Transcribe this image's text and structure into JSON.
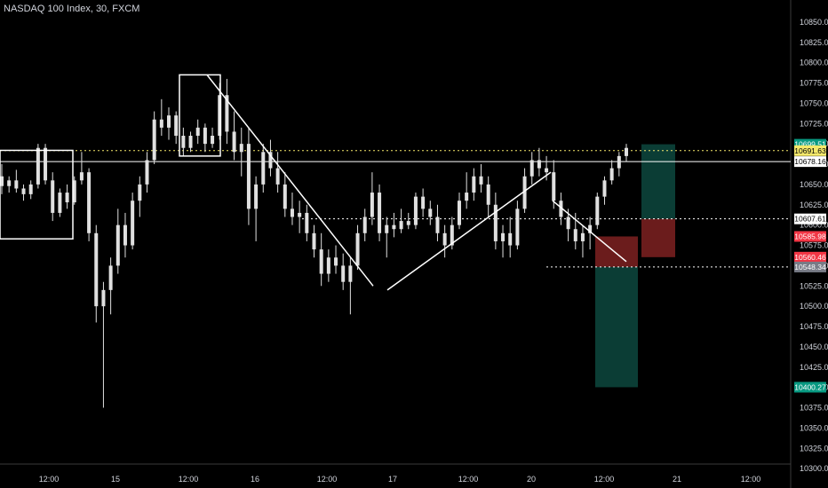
{
  "header": {
    "title": "NASDAQ 100 Index, 30, FXCM"
  },
  "chart_data": {
    "type": "candlestick",
    "title": "NASDAQ 100 Index, 30, FXCM",
    "ylim": [
      10295,
      10875
    ],
    "y_ticks": [
      10850,
      10825,
      10800,
      10775,
      10750,
      10725,
      10700,
      10675,
      10650,
      10625,
      10600,
      10575,
      10550,
      10525,
      10500,
      10475,
      10450,
      10425,
      10400,
      10375,
      10350,
      10325,
      10300
    ],
    "y_tick_labels": [
      "10850.00",
      "10825.00",
      "10800.00",
      "10775.00",
      "10750.00",
      "10725.00",
      "10700.00",
      "10675.00",
      "10650.00",
      "10625.00",
      "10600.00",
      "10575.00",
      "10550.00",
      "10525.00",
      "10500.00",
      "10475.00",
      "10450.00",
      "10425.00",
      "10400.00",
      "10375.00",
      "10350.00",
      "10325.00",
      "10300.00"
    ],
    "x_labels": [
      "12:00",
      "15",
      "12:00",
      "16",
      "12:00",
      "17",
      "12:00",
      "20",
      "12:00",
      "21",
      "12:00"
    ],
    "price_tags": [
      {
        "label": "10699.51",
        "value": 10699.51,
        "color": "#089981"
      },
      {
        "label": "10691.63",
        "value": 10691.63,
        "color": "#f5e96b"
      },
      {
        "label": "10678.16",
        "value": 10678.16,
        "color": "#ffffff"
      },
      {
        "label": "10607.61",
        "value": 10607.61,
        "color": "#ffffff"
      },
      {
        "label": "10585.98",
        "value": 10585.98,
        "color": "#f23645"
      },
      {
        "label": "10560.46",
        "value": 10560.46,
        "color": "#f23645"
      },
      {
        "label": "10548.34",
        "value": 10548.34,
        "color": "#787b86"
      },
      {
        "label": "10400.27",
        "value": 10400.27,
        "color": "#089981"
      }
    ],
    "candles_ohlc": [
      [
        10660,
        10675,
        10638,
        10648
      ],
      [
        10648,
        10660,
        10640,
        10655
      ],
      [
        10655,
        10668,
        10640,
        10645
      ],
      [
        10645,
        10650,
        10630,
        10638
      ],
      [
        10638,
        10655,
        10632,
        10650
      ],
      [
        10650,
        10700,
        10645,
        10695
      ],
      [
        10695,
        10700,
        10650,
        10655
      ],
      [
        10655,
        10665,
        10605,
        10615
      ],
      [
        10615,
        10645,
        10610,
        10640
      ],
      [
        10640,
        10650,
        10620,
        10628
      ],
      [
        10628,
        10660,
        10625,
        10655
      ],
      [
        10655,
        10690,
        10650,
        10665
      ],
      [
        10665,
        10670,
        10580,
        10590
      ],
      [
        10590,
        10600,
        10480,
        10500
      ],
      [
        10500,
        10530,
        10375,
        10520
      ],
      [
        10520,
        10560,
        10490,
        10550
      ],
      [
        10550,
        10620,
        10540,
        10600
      ],
      [
        10600,
        10615,
        10560,
        10575
      ],
      [
        10575,
        10640,
        10570,
        10630
      ],
      [
        10630,
        10660,
        10610,
        10650
      ],
      [
        10650,
        10690,
        10640,
        10680
      ],
      [
        10680,
        10740,
        10675,
        10730
      ],
      [
        10730,
        10755,
        10710,
        10720
      ],
      [
        10720,
        10745,
        10705,
        10735
      ],
      [
        10735,
        10740,
        10700,
        10710
      ],
      [
        10710,
        10720,
        10685,
        10695
      ],
      [
        10695,
        10715,
        10690,
        10710
      ],
      [
        10710,
        10730,
        10700,
        10720
      ],
      [
        10720,
        10725,
        10690,
        10700
      ],
      [
        10700,
        10720,
        10695,
        10710
      ],
      [
        10710,
        10775,
        10705,
        10760
      ],
      [
        10760,
        10780,
        10700,
        10715
      ],
      [
        10715,
        10740,
        10680,
        10690
      ],
      [
        10690,
        10720,
        10660,
        10700
      ],
      [
        10700,
        10720,
        10600,
        10620
      ],
      [
        10620,
        10660,
        10580,
        10650
      ],
      [
        10650,
        10700,
        10640,
        10690
      ],
      [
        10690,
        10705,
        10660,
        10670
      ],
      [
        10670,
        10690,
        10640,
        10650
      ],
      [
        10650,
        10665,
        10610,
        10620
      ],
      [
        10620,
        10640,
        10600,
        10610
      ],
      [
        10610,
        10630,
        10590,
        10615
      ],
      [
        10615,
        10625,
        10580,
        10590
      ],
      [
        10590,
        10600,
        10560,
        10570
      ],
      [
        10570,
        10590,
        10525,
        10540
      ],
      [
        10540,
        10570,
        10530,
        10560
      ],
      [
        10560,
        10575,
        10540,
        10550
      ],
      [
        10550,
        10565,
        10520,
        10530
      ],
      [
        10530,
        10560,
        10490,
        10550
      ],
      [
        10550,
        10600,
        10545,
        10590
      ],
      [
        10590,
        10620,
        10580,
        10610
      ],
      [
        10610,
        10665,
        10600,
        10640
      ],
      [
        10640,
        10650,
        10580,
        10590
      ],
      [
        10590,
        10610,
        10560,
        10600
      ],
      [
        10600,
        10615,
        10585,
        10595
      ],
      [
        10595,
        10620,
        10590,
        10605
      ],
      [
        10605,
        10615,
        10595,
        10600
      ],
      [
        10600,
        10640,
        10595,
        10635
      ],
      [
        10635,
        10645,
        10610,
        10620
      ],
      [
        10620,
        10630,
        10600,
        10610
      ],
      [
        10610,
        10625,
        10580,
        10590
      ],
      [
        10590,
        10600,
        10560,
        10575
      ],
      [
        10575,
        10610,
        10570,
        10600
      ],
      [
        10600,
        10640,
        10595,
        10630
      ],
      [
        10630,
        10665,
        10620,
        10640
      ],
      [
        10640,
        10670,
        10630,
        10660
      ],
      [
        10660,
        10675,
        10640,
        10650
      ],
      [
        10650,
        10660,
        10610,
        10625
      ],
      [
        10625,
        10640,
        10570,
        10580
      ],
      [
        10580,
        10600,
        10560,
        10590
      ],
      [
        10590,
        10610,
        10560,
        10575
      ],
      [
        10575,
        10630,
        10570,
        10620
      ],
      [
        10620,
        10670,
        10615,
        10660
      ],
      [
        10660,
        10690,
        10650,
        10680
      ],
      [
        10680,
        10695,
        10660,
        10670
      ],
      [
        10670,
        10685,
        10655,
        10665
      ],
      [
        10665,
        10680,
        10620,
        10630
      ],
      [
        10630,
        10640,
        10600,
        10610
      ],
      [
        10610,
        10620,
        10580,
        10595
      ],
      [
        10595,
        10615,
        10570,
        10580
      ],
      [
        10580,
        10600,
        10560,
        10590
      ],
      [
        10590,
        10610,
        10570,
        10600
      ],
      [
        10600,
        10640,
        10595,
        10635
      ],
      [
        10635,
        10660,
        10625,
        10655
      ],
      [
        10655,
        10680,
        10650,
        10670
      ],
      [
        10670,
        10690,
        10660,
        10685
      ],
      [
        10685,
        10700,
        10678,
        10695
      ]
    ],
    "trend_lines": [
      {
        "from": [
          "14 13:30",
          10785
        ],
        "to": [
          "16 12:00",
          10525
        ]
      },
      {
        "from": [
          "16 17:00",
          10520
        ],
        "to": [
          "20 01:00",
          10665
        ]
      },
      {
        "from": [
          "20 01:00",
          10630
        ],
        "to": [
          "20 08:00",
          10555
        ]
      }
    ],
    "boxes": [
      {
        "from": [
          10692,
          10583
        ],
        "label": ""
      },
      {
        "from": [
          10785,
          10685
        ],
        "label": ""
      }
    ],
    "positions": [
      {
        "entry": 10548.34,
        "stop": 10585.98,
        "target": 10400.27
      },
      {
        "entry": 10607.61,
        "stop": 10560.46,
        "target": 10699.51
      }
    ],
    "horizontal_lines": [
      {
        "value": 10691.63,
        "style": "dotted",
        "color": "#f5e96b"
      },
      {
        "value": 10678.16,
        "style": "solid",
        "color": "#ffffff"
      },
      {
        "value": 10607.61,
        "style": "dotted",
        "color": "#ffffff"
      },
      {
        "value": 10548.34,
        "style": "dotted",
        "color": "#ffffff"
      }
    ],
    "grid": false,
    "legend": "none"
  },
  "colors": {
    "background": "#000000",
    "candle": "#e0e0e0",
    "axis_text": "#d1d4dc",
    "green_zone": "#0b3d35",
    "red_zone": "#6b1c1c"
  }
}
